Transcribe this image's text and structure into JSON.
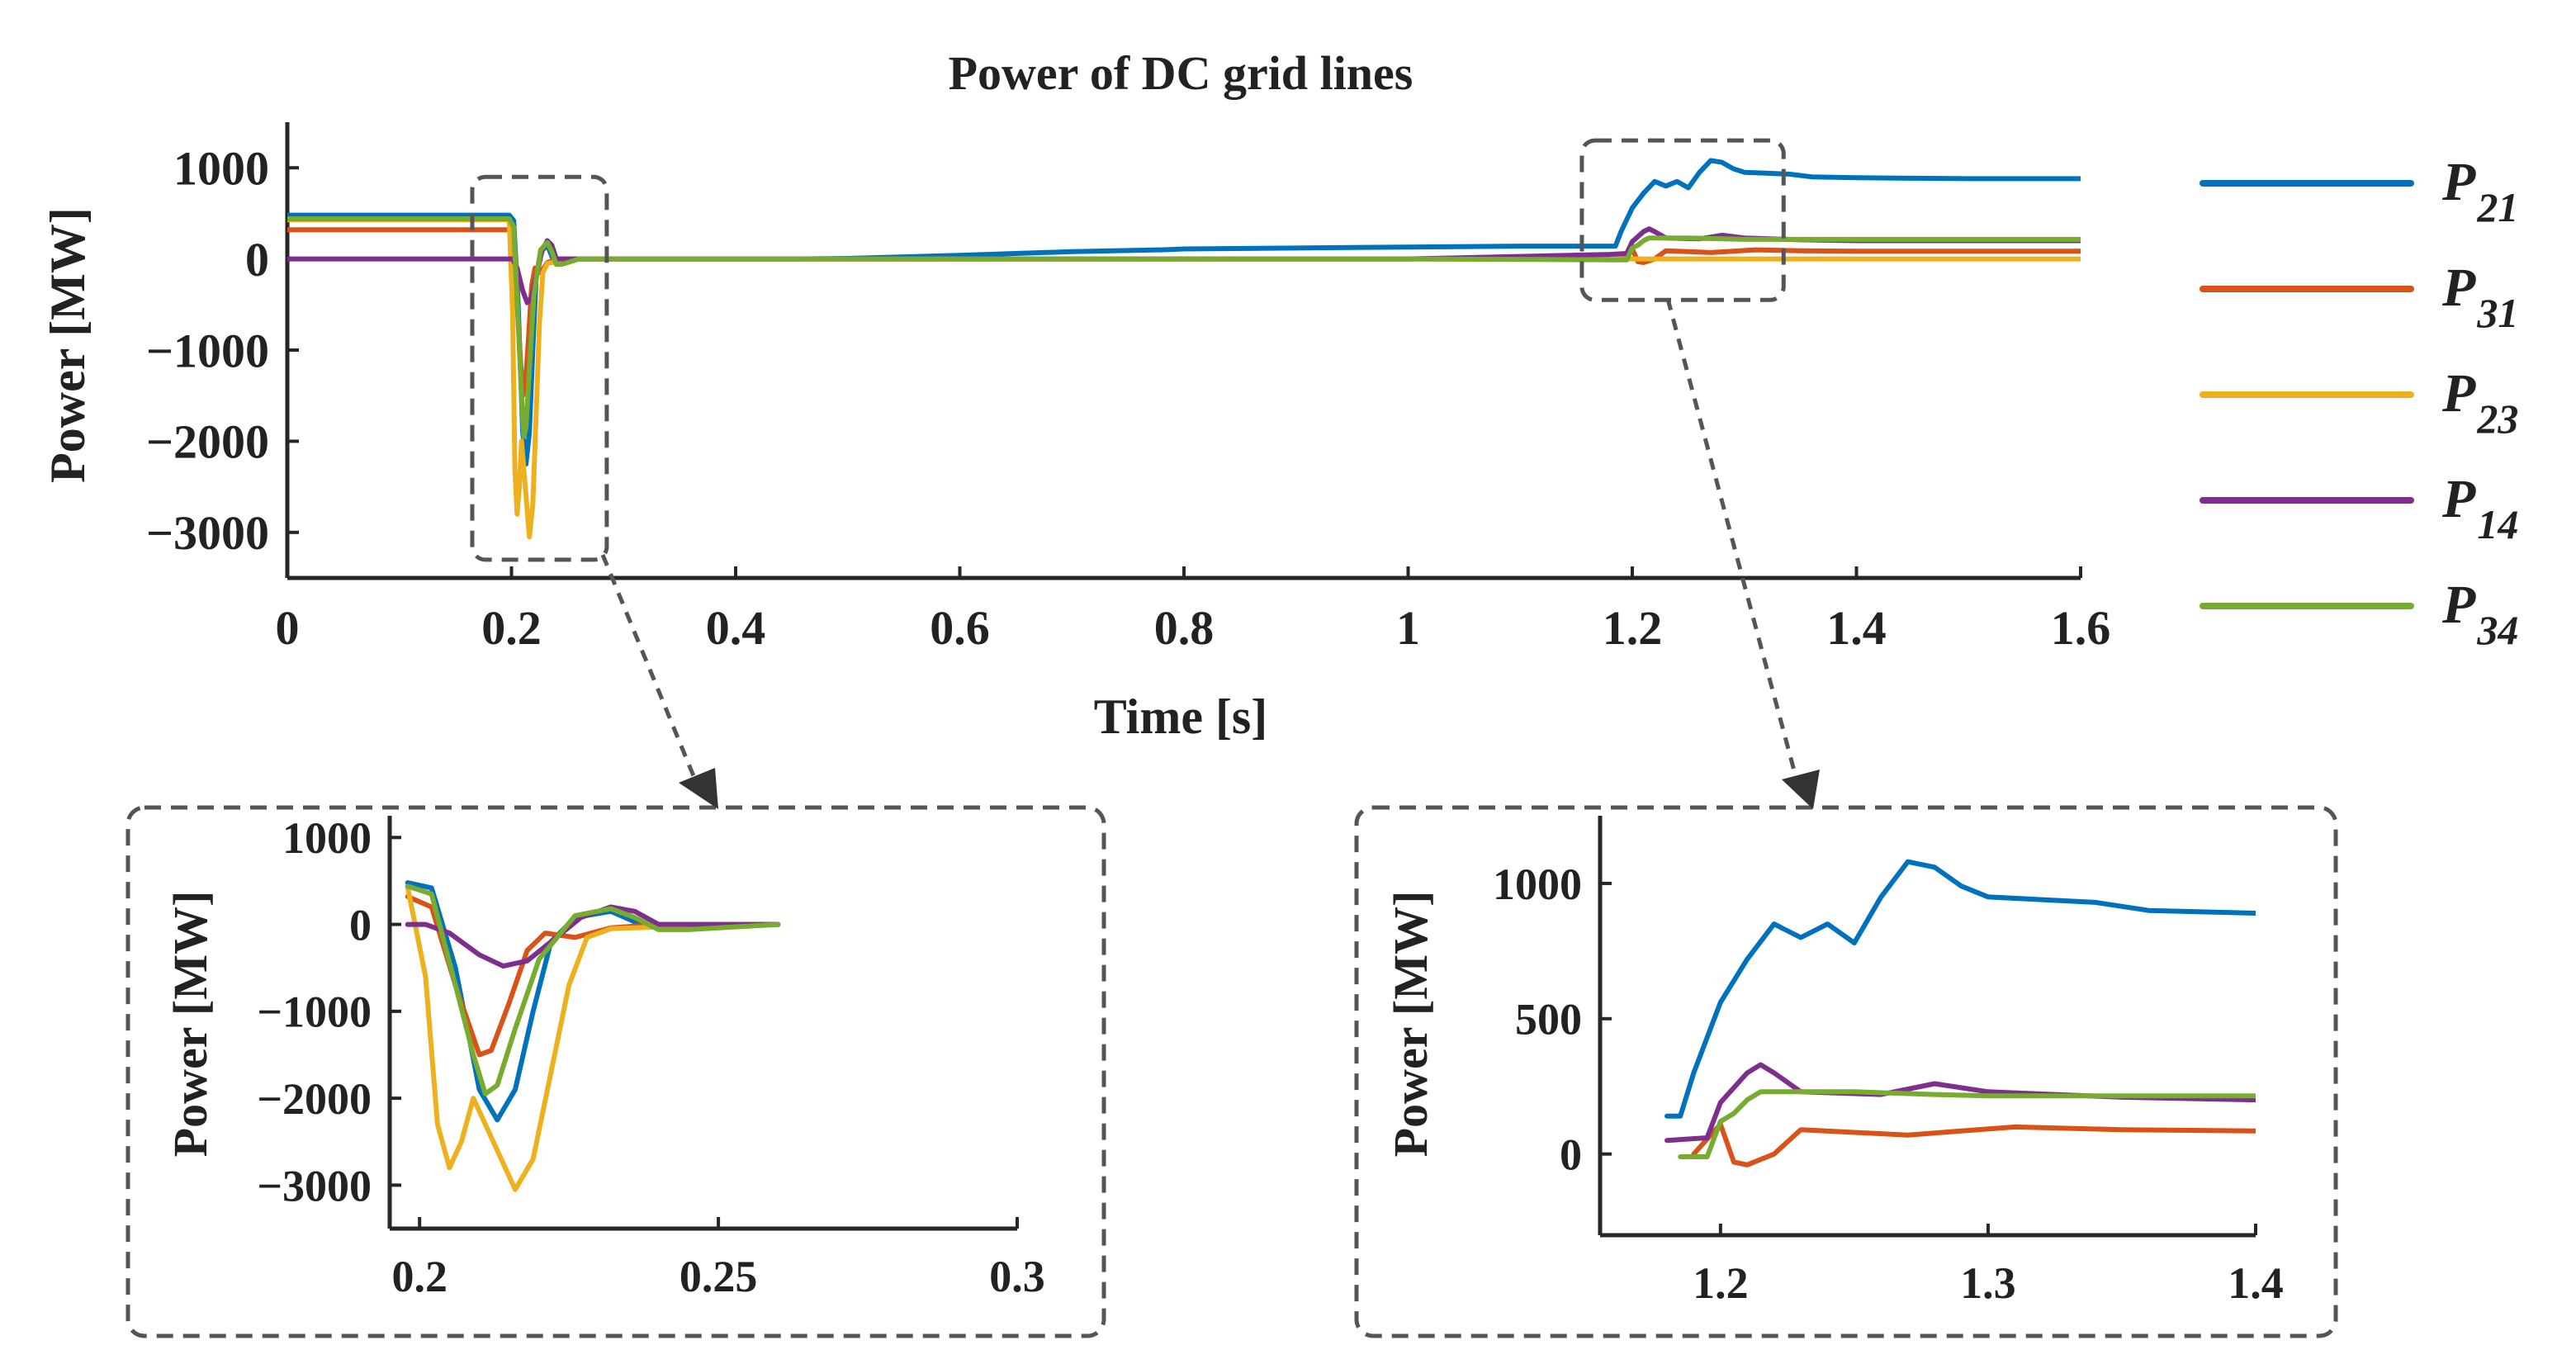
{
  "chart_data": [
    {
      "id": "main",
      "type": "line",
      "title": "Power of DC grid lines",
      "xlabel": "Time [s]",
      "ylabel": "Power [MW]",
      "xlim": [
        0,
        1.6
      ],
      "ylim": [
        -3500,
        1500
      ],
      "xticks": [
        0,
        0.2,
        0.4,
        0.6,
        0.8,
        1,
        1.2,
        1.4,
        1.6
      ],
      "xtick_labels": [
        "0",
        "0.2",
        "0.4",
        "0.6",
        "0.8",
        "1",
        "1.2",
        "1.4",
        "1.6"
      ],
      "yticks": [
        1000,
        0,
        -1000,
        -2000,
        -3000
      ],
      "ytick_labels": [
        "1000",
        "0",
        "−1000",
        "−2000",
        "−3000"
      ],
      "zoom_regions": [
        {
          "x": [
            0.165,
            0.285
          ],
          "y": [
            -3300,
            900
          ]
        },
        {
          "x": [
            1.155,
            1.335
          ],
          "y": [
            -450,
            1300
          ]
        }
      ],
      "series": [
        {
          "name": "P21",
          "color": "#0072BD",
          "points": [
            [
              0,
              480
            ],
            [
              0.198,
              480
            ],
            [
              0.202,
              420
            ],
            [
              0.206,
              -500
            ],
            [
              0.21,
              -1900
            ],
            [
              0.213,
              -2250
            ],
            [
              0.216,
              -1900
            ],
            [
              0.219,
              -1000
            ],
            [
              0.222,
              -200
            ],
            [
              0.226,
              80
            ],
            [
              0.232,
              150
            ],
            [
              0.238,
              -30
            ],
            [
              0.245,
              -10
            ],
            [
              0.26,
              0
            ],
            [
              0.45,
              0
            ],
            [
              0.5,
              5
            ],
            [
              0.6,
              40
            ],
            [
              0.7,
              80
            ],
            [
              0.78,
              100
            ],
            [
              0.8,
              110
            ],
            [
              0.9,
              120
            ],
            [
              1.0,
              130
            ],
            [
              1.1,
              140
            ],
            [
              1.18,
              140
            ],
            [
              1.185,
              140
            ],
            [
              1.19,
              300
            ],
            [
              1.2,
              560
            ],
            [
              1.21,
              720
            ],
            [
              1.22,
              850
            ],
            [
              1.23,
              800
            ],
            [
              1.24,
              850
            ],
            [
              1.25,
              780
            ],
            [
              1.26,
              950
            ],
            [
              1.27,
              1080
            ],
            [
              1.28,
              1060
            ],
            [
              1.29,
              990
            ],
            [
              1.3,
              950
            ],
            [
              1.32,
              940
            ],
            [
              1.34,
              930
            ],
            [
              1.36,
              900
            ],
            [
              1.4,
              890
            ],
            [
              1.5,
              880
            ],
            [
              1.6,
              880
            ]
          ]
        },
        {
          "name": "P31",
          "color": "#D95319",
          "points": [
            [
              0,
              320
            ],
            [
              0.198,
              320
            ],
            [
              0.202,
              200
            ],
            [
              0.206,
              -700
            ],
            [
              0.21,
              -1500
            ],
            [
              0.212,
              -1450
            ],
            [
              0.215,
              -900
            ],
            [
              0.218,
              -300
            ],
            [
              0.221,
              -100
            ],
            [
              0.226,
              -150
            ],
            [
              0.232,
              -40
            ],
            [
              0.24,
              0
            ],
            [
              0.26,
              0
            ],
            [
              1.0,
              0
            ],
            [
              1.19,
              0
            ],
            [
              1.2,
              110
            ],
            [
              1.205,
              -30
            ],
            [
              1.21,
              -40
            ],
            [
              1.22,
              0
            ],
            [
              1.23,
              90
            ],
            [
              1.25,
              80
            ],
            [
              1.27,
              70
            ],
            [
              1.29,
              85
            ],
            [
              1.31,
              100
            ],
            [
              1.35,
              90
            ],
            [
              1.4,
              85
            ],
            [
              1.6,
              85
            ]
          ]
        },
        {
          "name": "P23",
          "color": "#EDB120",
          "points": [
            [
              0,
              430
            ],
            [
              0.198,
              430
            ],
            [
              0.201,
              -600
            ],
            [
              0.203,
              -2300
            ],
            [
              0.205,
              -2800
            ],
            [
              0.207,
              -2500
            ],
            [
              0.209,
              -2000
            ],
            [
              0.213,
              -2600
            ],
            [
              0.216,
              -3050
            ],
            [
              0.219,
              -2700
            ],
            [
              0.222,
              -1700
            ],
            [
              0.225,
              -700
            ],
            [
              0.228,
              -150
            ],
            [
              0.232,
              -50
            ],
            [
              0.24,
              -30
            ],
            [
              0.26,
              0
            ],
            [
              1.6,
              0
            ]
          ]
        },
        {
          "name": "P14",
          "color": "#7E2F8E",
          "points": [
            [
              0,
              0
            ],
            [
              0.198,
              0
            ],
            [
              0.201,
              0
            ],
            [
              0.205,
              -100
            ],
            [
              0.21,
              -350
            ],
            [
              0.214,
              -480
            ],
            [
              0.218,
              -420
            ],
            [
              0.222,
              -200
            ],
            [
              0.227,
              80
            ],
            [
              0.232,
              200
            ],
            [
              0.236,
              150
            ],
            [
              0.24,
              0
            ],
            [
              0.26,
              0
            ],
            [
              1.0,
              0
            ],
            [
              1.18,
              50
            ],
            [
              1.195,
              60
            ],
            [
              1.2,
              190
            ],
            [
              1.21,
              300
            ],
            [
              1.215,
              330
            ],
            [
              1.22,
              300
            ],
            [
              1.23,
              230
            ],
            [
              1.26,
              220
            ],
            [
              1.28,
              260
            ],
            [
              1.3,
              230
            ],
            [
              1.35,
              210
            ],
            [
              1.4,
              200
            ],
            [
              1.6,
              200
            ]
          ]
        },
        {
          "name": "P34",
          "color": "#77AC30",
          "points": [
            [
              0,
              440
            ],
            [
              0.198,
              440
            ],
            [
              0.202,
              350
            ],
            [
              0.206,
              -700
            ],
            [
              0.209,
              -1500
            ],
            [
              0.211,
              -1950
            ],
            [
              0.213,
              -1850
            ],
            [
              0.216,
              -1200
            ],
            [
              0.22,
              -400
            ],
            [
              0.226,
              100
            ],
            [
              0.232,
              180
            ],
            [
              0.236,
              80
            ],
            [
              0.24,
              -60
            ],
            [
              0.245,
              -60
            ],
            [
              0.26,
              0
            ],
            [
              1.0,
              0
            ],
            [
              1.185,
              -10
            ],
            [
              1.195,
              -10
            ],
            [
              1.2,
              120
            ],
            [
              1.205,
              150
            ],
            [
              1.21,
              200
            ],
            [
              1.215,
              230
            ],
            [
              1.23,
              230
            ],
            [
              1.25,
              230
            ],
            [
              1.28,
              220
            ],
            [
              1.3,
              215
            ],
            [
              1.35,
              215
            ],
            [
              1.4,
              215
            ],
            [
              1.6,
              215
            ]
          ]
        }
      ]
    },
    {
      "id": "zoom1",
      "type": "line",
      "title": "",
      "xlabel": "",
      "ylabel": "Power [MW]",
      "xlim": [
        0.195,
        0.3
      ],
      "ylim": [
        -3500,
        1250
      ],
      "xticks": [
        0.2,
        0.25,
        0.3
      ],
      "xtick_labels": [
        "0.2",
        "0.25",
        "0.3"
      ],
      "yticks": [
        1000,
        0,
        -1000,
        -2000,
        -3000
      ],
      "ytick_labels": [
        "1000",
        "0",
        "−1000",
        "−2000",
        "−3000"
      ],
      "series_ref": "main",
      "series_names": [
        "P21",
        "P31",
        "P23",
        "P14",
        "P34"
      ]
    },
    {
      "id": "zoom2",
      "type": "line",
      "title": "",
      "xlabel": "",
      "ylabel": "Power [MW]",
      "xlim": [
        1.155,
        1.4
      ],
      "ylim": [
        -300,
        1250
      ],
      "xticks": [
        1.2,
        1.3,
        1.4
      ],
      "xtick_labels": [
        "1.2",
        "1.3",
        "1.4"
      ],
      "yticks": [
        1000,
        500,
        0
      ],
      "ytick_labels": [
        "1000",
        "500",
        "0"
      ],
      "series_ref": "main",
      "series_names": [
        "P21",
        "P31",
        "P23",
        "P14",
        "P34"
      ]
    }
  ],
  "legend": {
    "position": "right",
    "items": [
      {
        "name": "P21",
        "base": "P",
        "sub": "21",
        "color": "#0072BD"
      },
      {
        "name": "P31",
        "base": "P",
        "sub": "31",
        "color": "#D95319"
      },
      {
        "name": "P23",
        "base": "P",
        "sub": "23",
        "color": "#EDB120"
      },
      {
        "name": "P14",
        "base": "P",
        "sub": "14",
        "color": "#7E2F8E"
      },
      {
        "name": "P34",
        "base": "P",
        "sub": "34",
        "color": "#77AC30"
      }
    ]
  }
}
